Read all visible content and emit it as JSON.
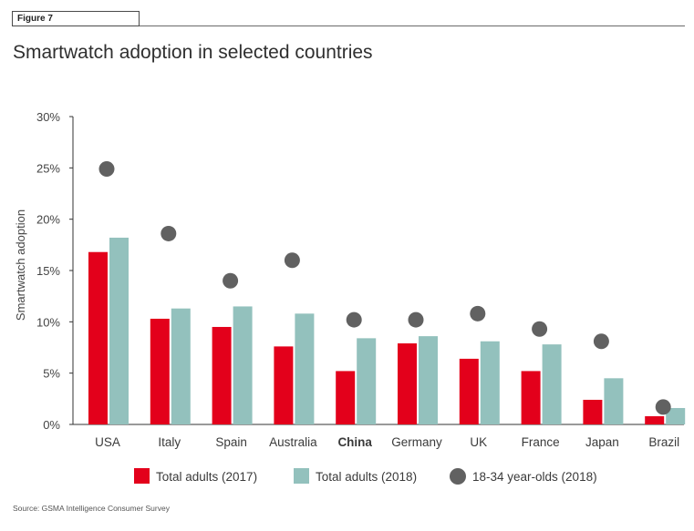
{
  "figure_label": "Figure 7",
  "source": "Source: GSMA Intelligence Consumer Survey",
  "chart_data": {
    "type": "bar",
    "title": "Smartwatch adoption in selected countries",
    "ylabel": "Smartwatch adoption",
    "xlabel": "",
    "ylim": [
      0,
      30
    ],
    "yticks": [
      "0%",
      "5%",
      "10%",
      "15%",
      "20%",
      "25%",
      "30%"
    ],
    "ytick_values": [
      0,
      5,
      10,
      15,
      20,
      25,
      30
    ],
    "categories": [
      "USA",
      "Italy",
      "Spain",
      "Australia",
      "China",
      "Germany",
      "UK",
      "France",
      "Japan",
      "Brazil"
    ],
    "highlight_category": "China",
    "series": [
      {
        "name": "Total adults (2017)",
        "kind": "bar",
        "color": "#e3001b",
        "values": [
          16.8,
          10.3,
          9.5,
          7.6,
          5.2,
          7.9,
          6.4,
          5.2,
          2.4,
          0.8
        ]
      },
      {
        "name": "Total adults (2018)",
        "kind": "bar",
        "color": "#93c1bd",
        "values": [
          18.2,
          11.3,
          11.5,
          10.8,
          8.4,
          8.6,
          8.1,
          7.8,
          4.5,
          1.6
        ]
      },
      {
        "name": "18-34 year-olds (2018)",
        "kind": "dot",
        "color": "#616161",
        "values": [
          24.9,
          18.6,
          14.0,
          16.0,
          10.2,
          10.2,
          10.8,
          9.3,
          8.1,
          1.7
        ]
      }
    ],
    "legend_position": "bottom-center",
    "grid": false
  }
}
